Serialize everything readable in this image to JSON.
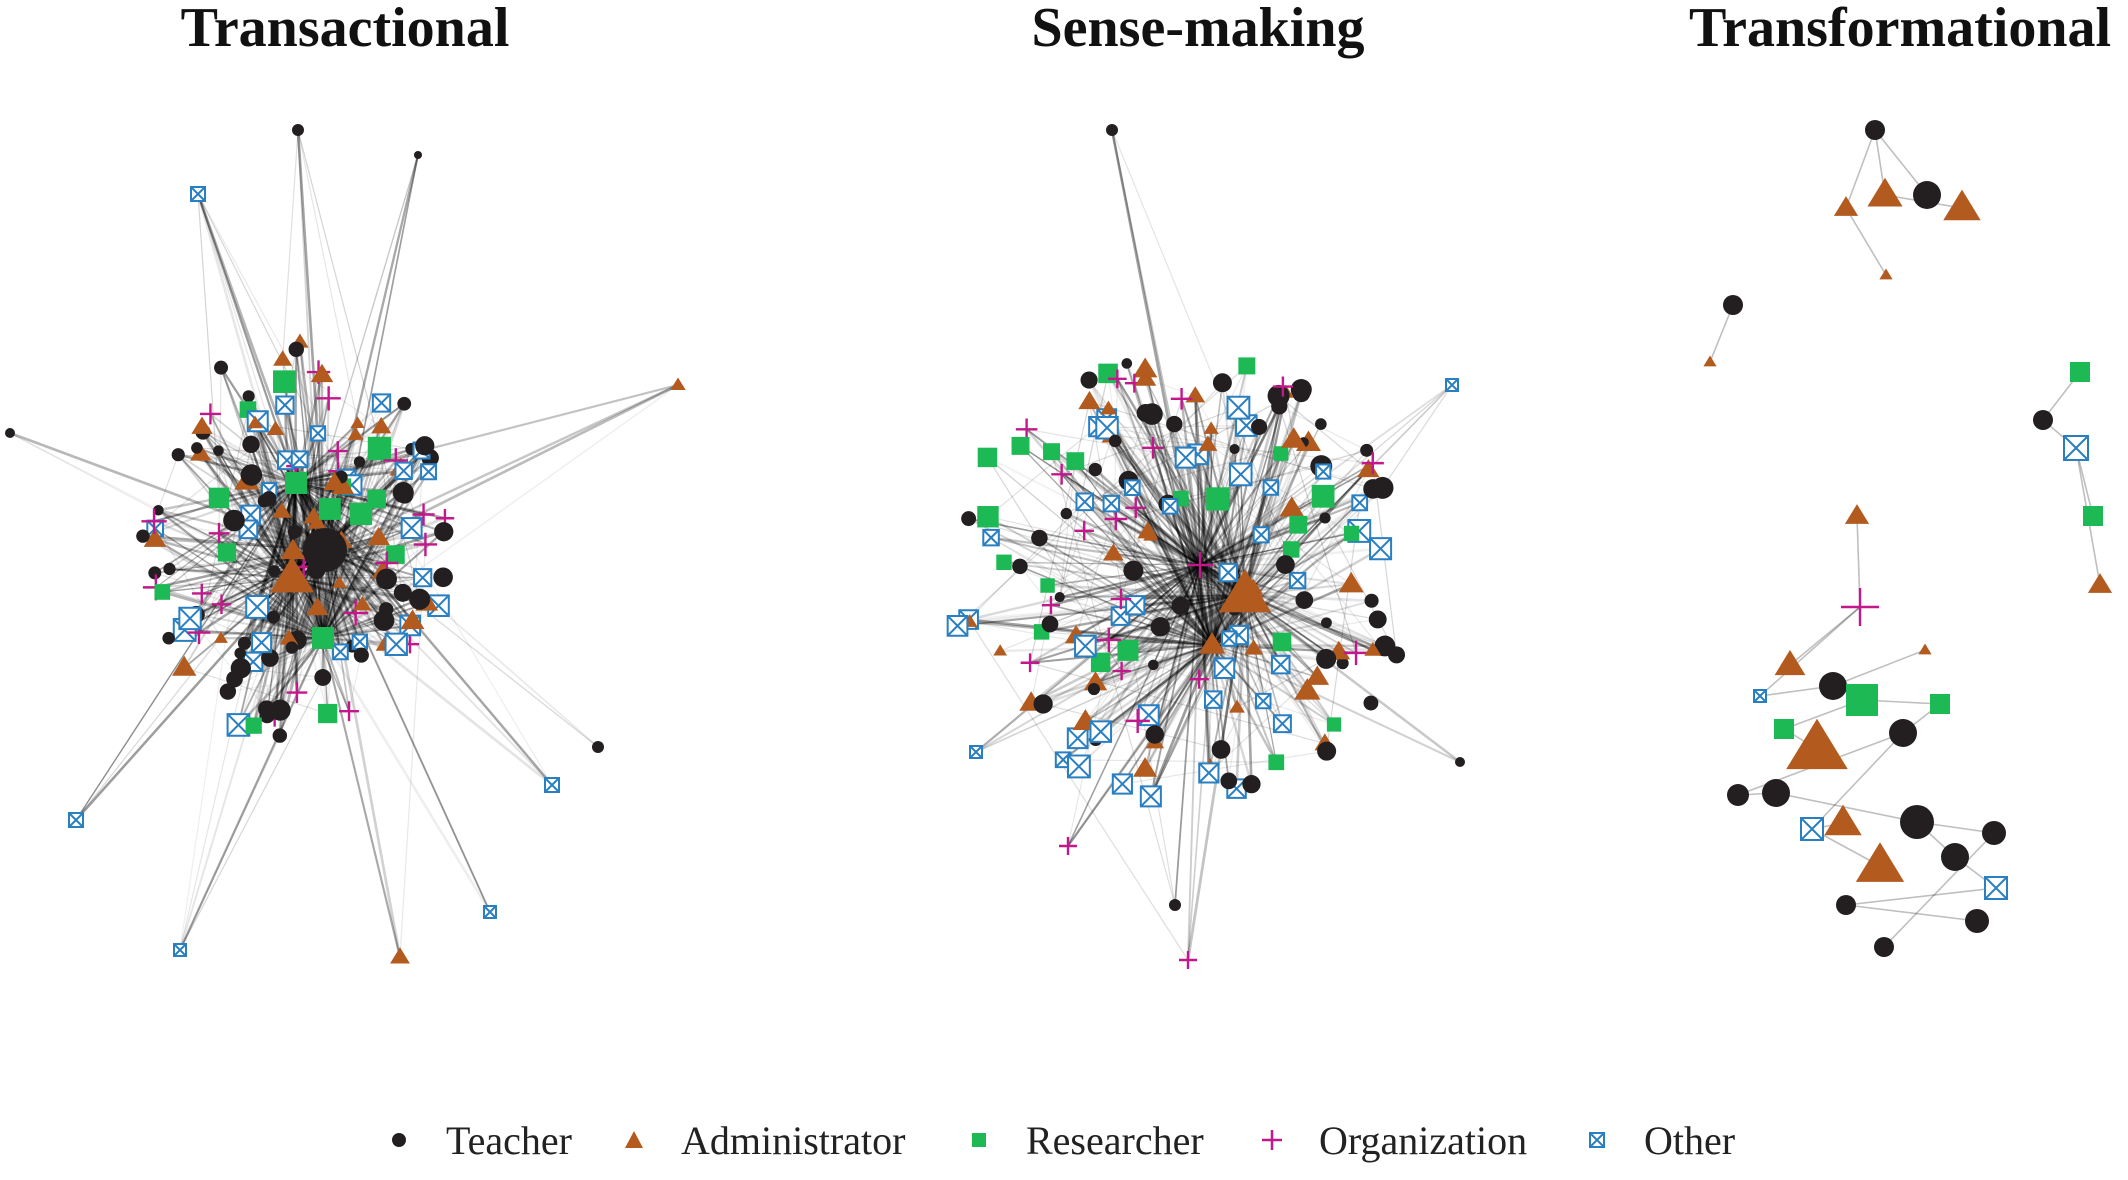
{
  "panels": [
    {
      "id": "transactional",
      "title": "Transactional"
    },
    {
      "id": "sensemaking",
      "title": "Sense-making"
    },
    {
      "id": "transformational",
      "title": "Transformational"
    }
  ],
  "legend": [
    {
      "id": "teacher",
      "label": "Teacher",
      "shape": "circle",
      "color": "#231f20"
    },
    {
      "id": "administrator",
      "label": "Administrator",
      "shape": "triangle",
      "color": "#b35a1f"
    },
    {
      "id": "researcher",
      "label": "Researcher",
      "shape": "square",
      "color": "#1db954"
    },
    {
      "id": "organization",
      "label": "Organization",
      "shape": "plus",
      "color": "#c2188b"
    },
    {
      "id": "other",
      "label": "Other",
      "shape": "boxed-x",
      "color": "#2a7fc1"
    }
  ],
  "colors": {
    "edge": "#000000",
    "teacher": "#231f20",
    "administrator": "#b35a1f",
    "researcher": "#1db954",
    "organization": "#c2188b",
    "other": "#2a7fc1"
  }
}
